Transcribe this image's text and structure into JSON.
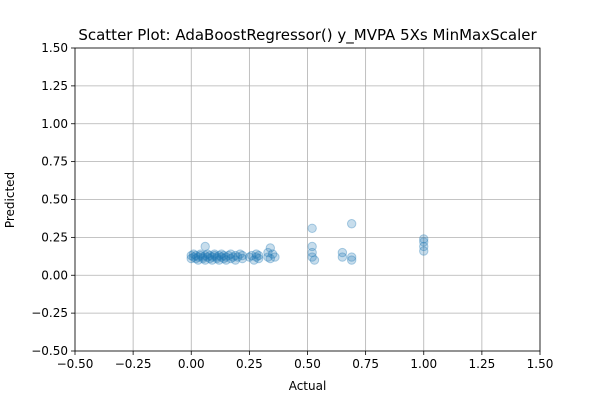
{
  "chart_data": {
    "type": "scatter",
    "title": "Scatter Plot: AdaBoostRegressor() y_MVPA 5Xs MinMaxScaler",
    "xlabel": "Actual",
    "ylabel": "Predicted",
    "xlim": [
      -0.5,
      1.5
    ],
    "ylim": [
      -0.5,
      1.5
    ],
    "x_ticks": [
      -0.5,
      -0.25,
      0.0,
      0.25,
      0.5,
      0.75,
      1.0,
      1.25,
      1.5
    ],
    "x_tick_labels": [
      "−0.50",
      "−0.25",
      "0.00",
      "0.25",
      "0.50",
      "0.75",
      "1.00",
      "1.25",
      "1.50"
    ],
    "y_ticks": [
      -0.5,
      -0.25,
      0.0,
      0.25,
      0.5,
      0.75,
      1.0,
      1.25,
      1.5
    ],
    "y_tick_labels": [
      "−0.50",
      "−0.25",
      "0.00",
      "0.25",
      "0.50",
      "0.75",
      "1.00",
      "1.25",
      "1.50"
    ],
    "grid": true,
    "marker_color": "#1f77b4",
    "marker_alpha": 0.25,
    "series": [
      {
        "points": [
          [
            0.0,
            0.11
          ],
          [
            0.0,
            0.13
          ],
          [
            0.01,
            0.12
          ],
          [
            0.01,
            0.14
          ],
          [
            0.02,
            0.11
          ],
          [
            0.02,
            0.13
          ],
          [
            0.03,
            0.12
          ],
          [
            0.03,
            0.1
          ],
          [
            0.04,
            0.13
          ],
          [
            0.04,
            0.14
          ],
          [
            0.05,
            0.11
          ],
          [
            0.05,
            0.12
          ],
          [
            0.06,
            0.13
          ],
          [
            0.06,
            0.1
          ],
          [
            0.06,
            0.19
          ],
          [
            0.07,
            0.12
          ],
          [
            0.07,
            0.14
          ],
          [
            0.08,
            0.11
          ],
          [
            0.08,
            0.13
          ],
          [
            0.09,
            0.12
          ],
          [
            0.09,
            0.1
          ],
          [
            0.1,
            0.13
          ],
          [
            0.1,
            0.14
          ],
          [
            0.11,
            0.11
          ],
          [
            0.11,
            0.12
          ],
          [
            0.12,
            0.13
          ],
          [
            0.12,
            0.1
          ],
          [
            0.13,
            0.12
          ],
          [
            0.13,
            0.14
          ],
          [
            0.14,
            0.11
          ],
          [
            0.14,
            0.13
          ],
          [
            0.15,
            0.12
          ],
          [
            0.15,
            0.1
          ],
          [
            0.16,
            0.13
          ],
          [
            0.17,
            0.11
          ],
          [
            0.17,
            0.14
          ],
          [
            0.18,
            0.12
          ],
          [
            0.19,
            0.13
          ],
          [
            0.19,
            0.1
          ],
          [
            0.2,
            0.12
          ],
          [
            0.21,
            0.14
          ],
          [
            0.22,
            0.11
          ],
          [
            0.22,
            0.13
          ],
          [
            0.25,
            0.12
          ],
          [
            0.26,
            0.13
          ],
          [
            0.27,
            0.1
          ],
          [
            0.28,
            0.12
          ],
          [
            0.28,
            0.14
          ],
          [
            0.29,
            0.11
          ],
          [
            0.29,
            0.13
          ],
          [
            0.33,
            0.12
          ],
          [
            0.33,
            0.15
          ],
          [
            0.34,
            0.11
          ],
          [
            0.34,
            0.18
          ],
          [
            0.35,
            0.14
          ],
          [
            0.36,
            0.12
          ],
          [
            0.52,
            0.31
          ],
          [
            0.52,
            0.19
          ],
          [
            0.52,
            0.15
          ],
          [
            0.52,
            0.12
          ],
          [
            0.53,
            0.1
          ],
          [
            0.65,
            0.15
          ],
          [
            0.65,
            0.12
          ],
          [
            0.69,
            0.34
          ],
          [
            0.69,
            0.12
          ],
          [
            0.69,
            0.1
          ],
          [
            1.0,
            0.24
          ],
          [
            1.0,
            0.22
          ],
          [
            1.0,
            0.19
          ],
          [
            1.0,
            0.16
          ]
        ]
      }
    ]
  }
}
